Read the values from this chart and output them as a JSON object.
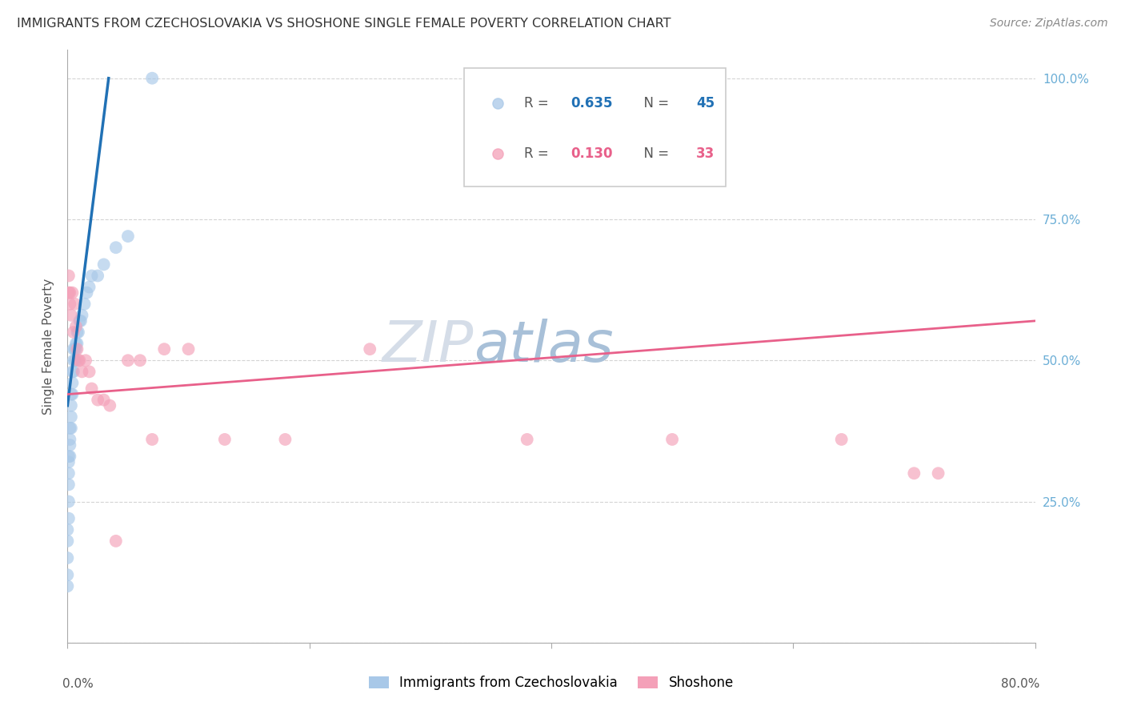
{
  "title": "IMMIGRANTS FROM CZECHOSLOVAKIA VS SHOSHONE SINGLE FEMALE POVERTY CORRELATION CHART",
  "source": "Source: ZipAtlas.com",
  "ylabel": "Single Female Poverty",
  "blue_R": 0.635,
  "blue_N": 45,
  "pink_R": 0.13,
  "pink_N": 33,
  "blue_color": "#a8c8e8",
  "pink_color": "#f4a0b8",
  "blue_line_color": "#2171b5",
  "pink_line_color": "#e8608a",
  "watermark_zip": "ZIP",
  "watermark_atlas": "atlas",
  "watermark_color_zip": "#d0d8e8",
  "watermark_color_atlas": "#a0bcd8",
  "background_color": "#ffffff",
  "grid_color": "#d0d0d0",
  "title_color": "#333333",
  "right_tick_color": "#6baed6",
  "xlim": [
    0.0,
    0.8
  ],
  "ylim": [
    0.0,
    1.05
  ],
  "blue_scatter_x": [
    0.0,
    0.0,
    0.0,
    0.0,
    0.0,
    0.001,
    0.001,
    0.001,
    0.001,
    0.001,
    0.001,
    0.002,
    0.002,
    0.002,
    0.002,
    0.003,
    0.003,
    0.003,
    0.003,
    0.004,
    0.004,
    0.004,
    0.005,
    0.005,
    0.005,
    0.006,
    0.006,
    0.007,
    0.007,
    0.007,
    0.008,
    0.008,
    0.009,
    0.01,
    0.011,
    0.012,
    0.014,
    0.016,
    0.018,
    0.02,
    0.025,
    0.03,
    0.04,
    0.05,
    0.07
  ],
  "blue_scatter_y": [
    0.1,
    0.12,
    0.15,
    0.18,
    0.2,
    0.22,
    0.25,
    0.28,
    0.3,
    0.32,
    0.33,
    0.33,
    0.35,
    0.36,
    0.38,
    0.38,
    0.4,
    0.42,
    0.44,
    0.44,
    0.46,
    0.48,
    0.48,
    0.5,
    0.52,
    0.5,
    0.52,
    0.5,
    0.52,
    0.53,
    0.53,
    0.55,
    0.55,
    0.57,
    0.57,
    0.58,
    0.6,
    0.62,
    0.63,
    0.65,
    0.65,
    0.67,
    0.7,
    0.72,
    1.0
  ],
  "pink_scatter_x": [
    0.001,
    0.001,
    0.002,
    0.002,
    0.003,
    0.004,
    0.005,
    0.006,
    0.007,
    0.008,
    0.009,
    0.01,
    0.012,
    0.015,
    0.018,
    0.02,
    0.025,
    0.03,
    0.035,
    0.04,
    0.05,
    0.06,
    0.07,
    0.08,
    0.1,
    0.13,
    0.18,
    0.25,
    0.38,
    0.5,
    0.64,
    0.7,
    0.72
  ],
  "pink_scatter_y": [
    0.62,
    0.65,
    0.6,
    0.62,
    0.58,
    0.62,
    0.55,
    0.6,
    0.56,
    0.52,
    0.5,
    0.5,
    0.48,
    0.5,
    0.48,
    0.45,
    0.43,
    0.43,
    0.42,
    0.18,
    0.5,
    0.5,
    0.36,
    0.52,
    0.52,
    0.36,
    0.36,
    0.52,
    0.36,
    0.36,
    0.36,
    0.3,
    0.3
  ],
  "blue_line_x": [
    0.0,
    0.034
  ],
  "blue_line_y": [
    0.42,
    1.0
  ],
  "pink_line_x": [
    0.0,
    0.8
  ],
  "pink_line_y": [
    0.44,
    0.57
  ]
}
